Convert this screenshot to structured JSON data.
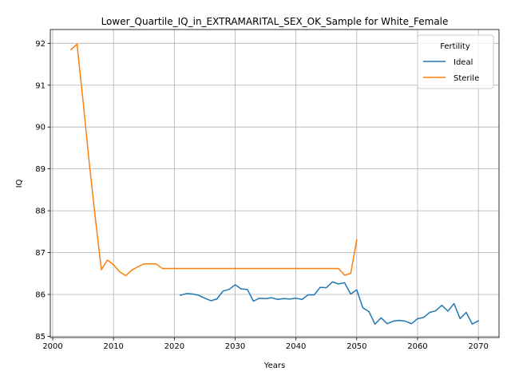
{
  "chart_data": {
    "type": "line",
    "title": "Lower_Quartile_IQ_in_EXTRAMARITAL_SEX_OK_Sample for White_Female",
    "xlabel": "Years",
    "ylabel": "IQ",
    "xlim": [
      1999.6,
      2073.4
    ],
    "ylim": [
      84.97,
      92.33
    ],
    "x_ticks": [
      2000,
      2010,
      2020,
      2030,
      2040,
      2050,
      2060,
      2070
    ],
    "x_tick_labels": [
      "2000",
      "2010",
      "2020",
      "2030",
      "2040",
      "2050",
      "2060",
      "2070"
    ],
    "y_ticks": [
      85,
      86,
      87,
      88,
      89,
      90,
      91,
      92
    ],
    "y_tick_labels": [
      "85",
      "86",
      "87",
      "88",
      "89",
      "90",
      "91",
      "92"
    ],
    "grid": true,
    "legend": {
      "title": "Fertility",
      "position": "top-right"
    },
    "series": [
      {
        "name": "Ideal",
        "color": "#1f77b4",
        "x": [
          2021,
          2022,
          2023,
          2024,
          2025,
          2026,
          2027,
          2028,
          2029,
          2030,
          2031,
          2032,
          2033,
          2034,
          2035,
          2036,
          2037,
          2038,
          2039,
          2040,
          2041,
          2042,
          2043,
          2044,
          2045,
          2046,
          2047,
          2048,
          2049,
          2050,
          2051,
          2052,
          2053,
          2054,
          2055,
          2056,
          2057,
          2058,
          2059,
          2060,
          2061,
          2062,
          2063,
          2064,
          2065,
          2066,
          2067,
          2068,
          2069,
          2070
        ],
        "y": [
          85.98,
          86.02,
          86.01,
          85.98,
          85.91,
          85.85,
          85.89,
          86.08,
          86.12,
          86.23,
          86.13,
          86.12,
          85.84,
          85.91,
          85.9,
          85.92,
          85.88,
          85.9,
          85.89,
          85.91,
          85.88,
          85.99,
          85.99,
          86.17,
          86.16,
          86.3,
          86.25,
          86.28,
          86.01,
          86.11,
          85.68,
          85.59,
          85.29,
          85.44,
          85.3,
          85.36,
          85.38,
          85.36,
          85.3,
          85.42,
          85.45,
          85.57,
          85.61,
          85.74,
          85.6,
          85.78,
          85.42,
          85.57,
          85.29,
          85.37
        ]
      },
      {
        "name": "Sterile",
        "color": "#ff7f0e",
        "x": [
          2003,
          2004,
          2005,
          2006,
          2007,
          2008,
          2009,
          2010,
          2011,
          2012,
          2013,
          2014,
          2015,
          2016,
          2017,
          2018,
          2019,
          2020,
          2021,
          2022,
          2023,
          2024,
          2025,
          2026,
          2027,
          2028,
          2029,
          2030,
          2031,
          2032,
          2033,
          2034,
          2035,
          2036,
          2037,
          2038,
          2039,
          2040,
          2041,
          2042,
          2043,
          2044,
          2045,
          2046,
          2047,
          2048,
          2049,
          2050
        ],
        "y": [
          91.85,
          91.98,
          90.6,
          89.15,
          87.83,
          86.59,
          86.82,
          86.71,
          86.54,
          86.45,
          86.58,
          86.66,
          86.73,
          86.73,
          86.73,
          86.62,
          86.62,
          86.62,
          86.62,
          86.62,
          86.62,
          86.62,
          86.62,
          86.62,
          86.62,
          86.62,
          86.62,
          86.62,
          86.62,
          86.62,
          86.62,
          86.62,
          86.62,
          86.62,
          86.62,
          86.62,
          86.62,
          86.62,
          86.62,
          86.62,
          86.62,
          86.62,
          86.62,
          86.62,
          86.62,
          86.46,
          86.5,
          87.3
        ]
      }
    ]
  }
}
